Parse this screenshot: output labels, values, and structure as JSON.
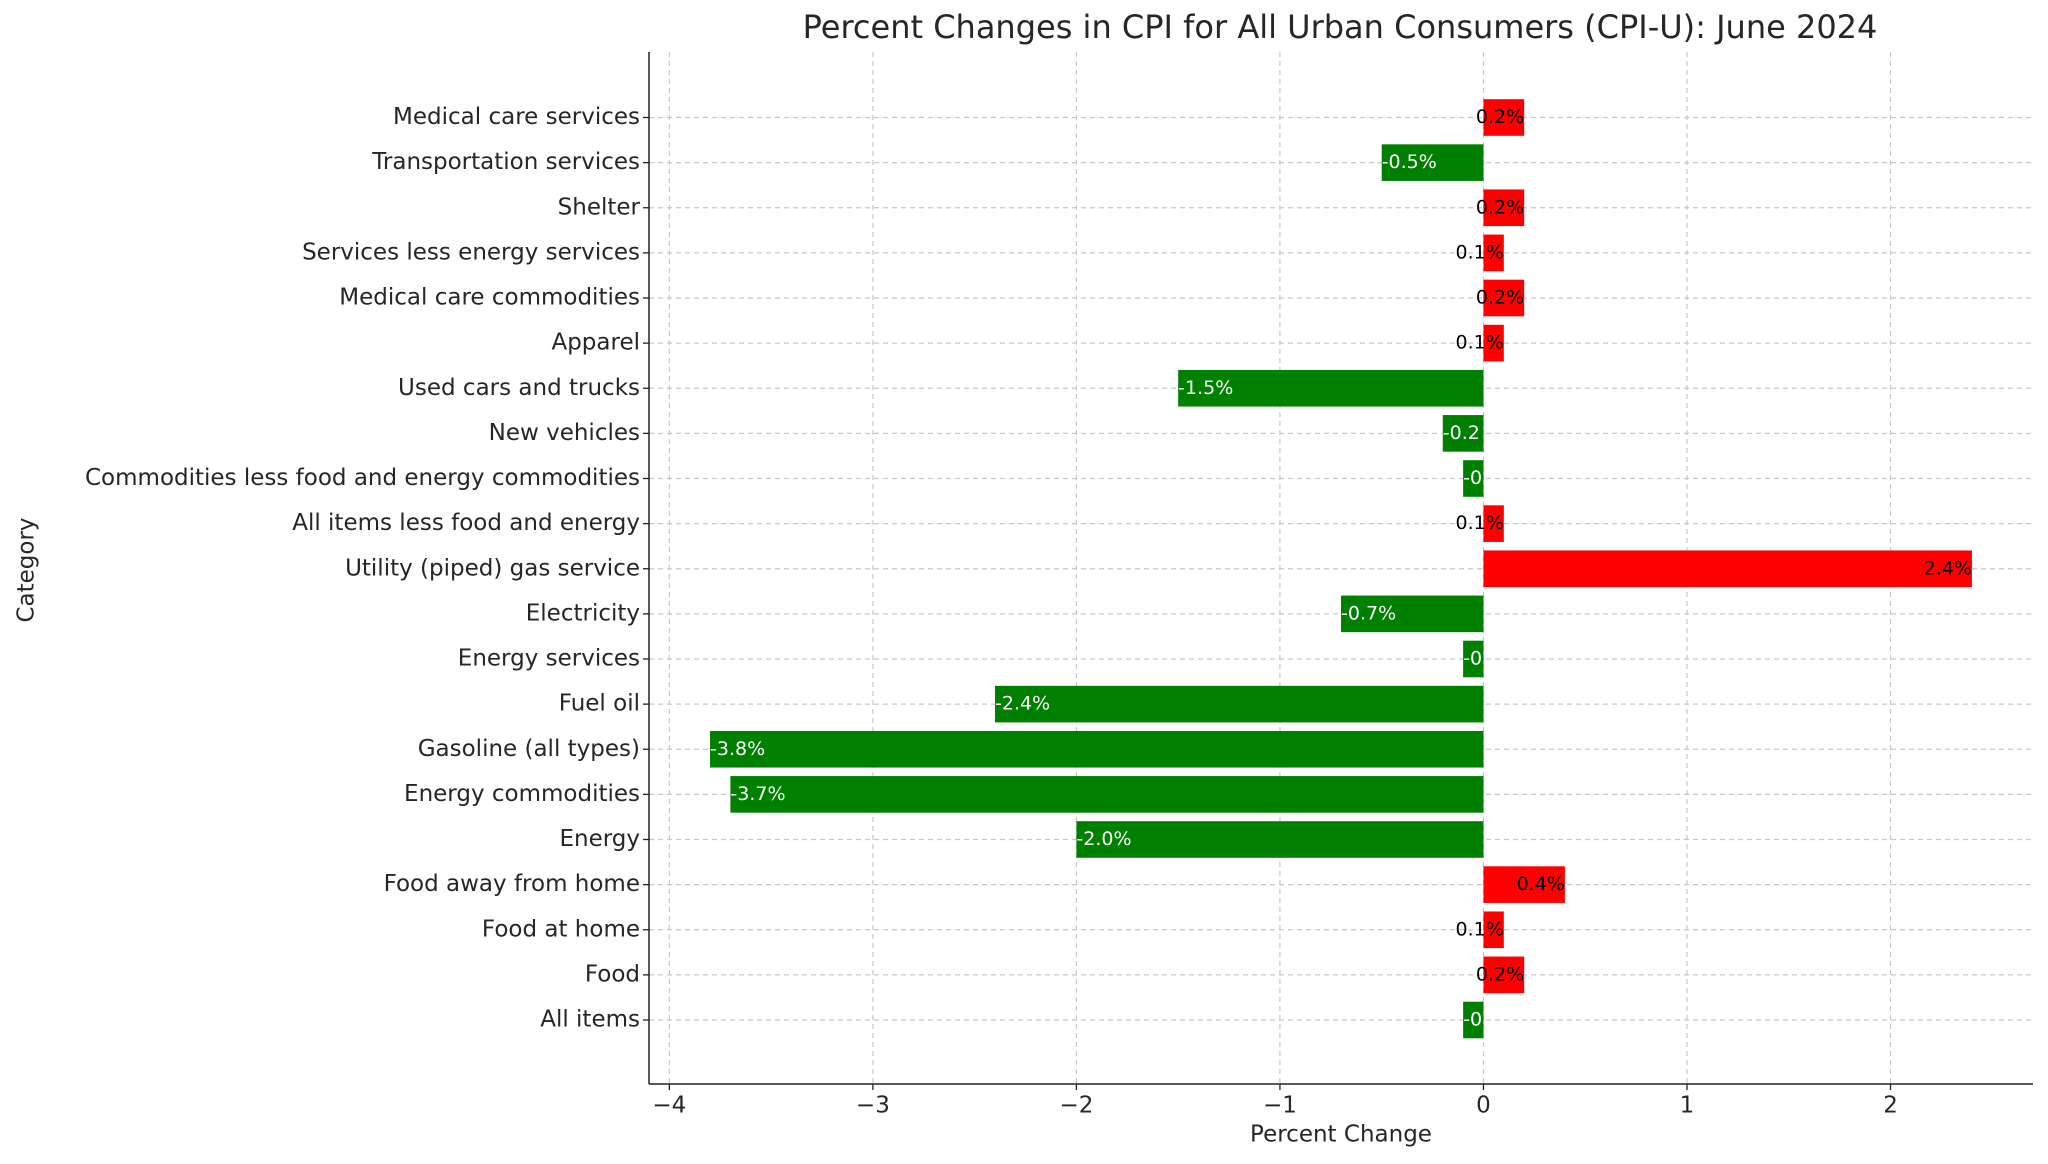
{
  "chart_data": {
    "type": "bar",
    "orientation": "horizontal",
    "title": "Percent Changes in CPI for All Urban Consumers (CPI-U): June 2024",
    "x_label": "Percent Change",
    "y_label": "Category",
    "categories": [
      "All items",
      "Food",
      "Food at home",
      "Food away from home",
      "Energy",
      "Energy commodities",
      "Gasoline (all types)",
      "Fuel oil",
      "Energy services",
      "Electricity",
      "Utility (piped) gas service",
      "All items less food and energy",
      "Commodities less food and energy commodities",
      "New vehicles",
      "Used cars and trucks",
      "Apparel",
      "Medical care commodities",
      "Services less energy services",
      "Shelter",
      "Transportation services",
      "Medical care services"
    ],
    "values": [
      -0.1,
      0.2,
      0.1,
      0.4,
      -2.0,
      -3.7,
      -3.8,
      -2.4,
      -0.1,
      -0.7,
      2.4,
      0.1,
      -0.1,
      -0.2,
      -1.5,
      0.1,
      0.2,
      0.1,
      0.2,
      -0.5,
      0.2
    ],
    "value_labels": [
      "-0",
      "0.2%",
      "0.1%",
      "0.4%",
      "-2.0%",
      "-3.7%",
      "-3.8%",
      "-2.4%",
      "-0",
      "-0.7%",
      "2.4%",
      "0.1%",
      "-0",
      "-0.2",
      "-1.5%",
      "0.1%",
      "0.2%",
      "0.1%",
      "0.2%",
      "-0.5%",
      "0.2%"
    ],
    "positive_color": "#ff0000",
    "negative_color": "#008000",
    "xlim": [
      -4.1,
      2.7
    ],
    "xticks": [
      {
        "value": -4,
        "label": "−4"
      },
      {
        "value": -3,
        "label": "−3"
      },
      {
        "value": -2,
        "label": "−2"
      },
      {
        "value": -1,
        "label": "−1"
      },
      0,
      1,
      2
    ],
    "grid": true
  }
}
